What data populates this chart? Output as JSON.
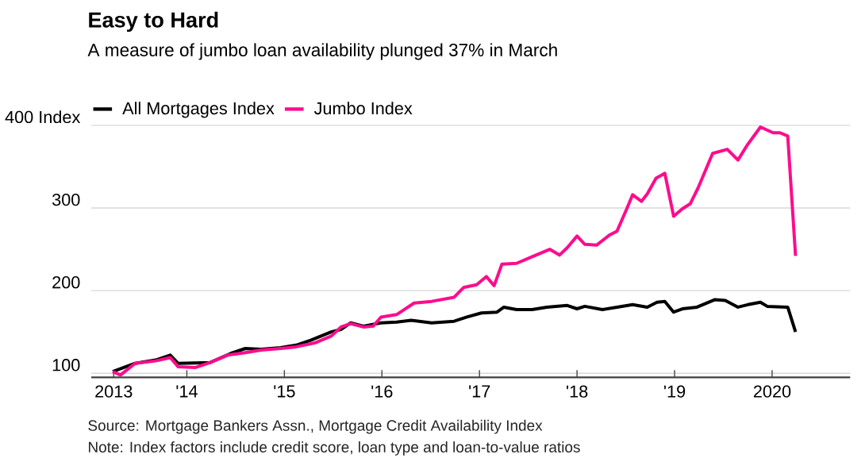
{
  "chart_data": {
    "type": "line",
    "title": "Easy to Hard",
    "subtitle": "A measure of jumbo loan availability plunged 37% in March",
    "xlim": [
      2013.02,
      2020.8
    ],
    "ylim": [
      95,
      400
    ],
    "xticks": [
      {
        "value": 2013.25,
        "label": "2013"
      },
      {
        "value": 2014,
        "label": "'14"
      },
      {
        "value": 2015,
        "label": "'15"
      },
      {
        "value": 2016,
        "label": "'16"
      },
      {
        "value": 2017,
        "label": "'17"
      },
      {
        "value": 2018,
        "label": "'18"
      },
      {
        "value": 2019,
        "label": "'19"
      },
      {
        "value": 2020,
        "label": "2020"
      }
    ],
    "yticks": [
      100,
      200,
      300,
      {
        "value": 400,
        "label": "400 Index"
      }
    ],
    "grid": "y",
    "legend": "top left",
    "marker": "none",
    "line_style": "solid",
    "series": [
      {
        "name": "All Mortgages Index",
        "color": "#000000",
        "x": [
          2013.24,
          2013.47,
          2013.68,
          2013.83,
          2013.91,
          2014.24,
          2014.45,
          2014.6,
          2014.76,
          2014.96,
          2015.12,
          2015.27,
          2015.48,
          2015.58,
          2015.68,
          2015.81,
          2015.99,
          2016.15,
          2016.3,
          2016.51,
          2016.74,
          2016.87,
          2017.02,
          2017.18,
          2017.25,
          2017.38,
          2017.54,
          2017.69,
          2017.9,
          2018.0,
          2018.08,
          2018.26,
          2018.41,
          2018.57,
          2018.72,
          2018.82,
          2018.9,
          2018.99,
          2019.08,
          2019.23,
          2019.41,
          2019.52,
          2019.65,
          2019.75,
          2019.88,
          2019.95,
          2020.16,
          2020.24
        ],
        "values": [
          102,
          112,
          116,
          122,
          112,
          113,
          124,
          130,
          129,
          131,
          134,
          140,
          150,
          153,
          161,
          157,
          161,
          162,
          164,
          161,
          163,
          168,
          173,
          174,
          180,
          177,
          177,
          180,
          182,
          178,
          181,
          177,
          180,
          183,
          180,
          186,
          187,
          174,
          178,
          180,
          189,
          188,
          180,
          183,
          186,
          181,
          180,
          150
        ]
      },
      {
        "name": "Jumbo Index",
        "color": "#fe0c8c",
        "x": [
          2013.24,
          2013.32,
          2013.47,
          2013.68,
          2013.83,
          2013.91,
          2014.09,
          2014.24,
          2014.42,
          2014.6,
          2014.76,
          2014.96,
          2015.12,
          2015.32,
          2015.48,
          2015.58,
          2015.68,
          2015.81,
          2015.91,
          2015.99,
          2016.15,
          2016.33,
          2016.51,
          2016.74,
          2016.84,
          2016.97,
          2017.07,
          2017.15,
          2017.23,
          2017.38,
          2017.54,
          2017.72,
          2017.82,
          2017.9,
          2018.0,
          2018.08,
          2018.2,
          2018.33,
          2018.41,
          2018.51,
          2018.57,
          2018.66,
          2018.72,
          2018.81,
          2018.9,
          2018.99,
          2019.08,
          2019.16,
          2019.24,
          2019.39,
          2019.54,
          2019.65,
          2019.75,
          2019.88,
          2020.01,
          2020.08,
          2020.16,
          2020.24
        ],
        "values": [
          102,
          98,
          112,
          115,
          119,
          108,
          107,
          113,
          122,
          125,
          128,
          130,
          132,
          137,
          145,
          156,
          160,
          156,
          157,
          168,
          171,
          185,
          187,
          192,
          204,
          207,
          217,
          206,
          232,
          233,
          241,
          250,
          243,
          252,
          266,
          256,
          255,
          267,
          272,
          299,
          316,
          308,
          317,
          336,
          342,
          290,
          299,
          305,
          324,
          366,
          371,
          358,
          377,
          398,
          391,
          391,
          387,
          242
        ]
      }
    ],
    "annotations": [
      "Source: Mortgage Bankers Assn., Mortgage Credit Availability Index",
      "Note: Index factors include credit score, loan type and loan-to-value ratios"
    ]
  }
}
